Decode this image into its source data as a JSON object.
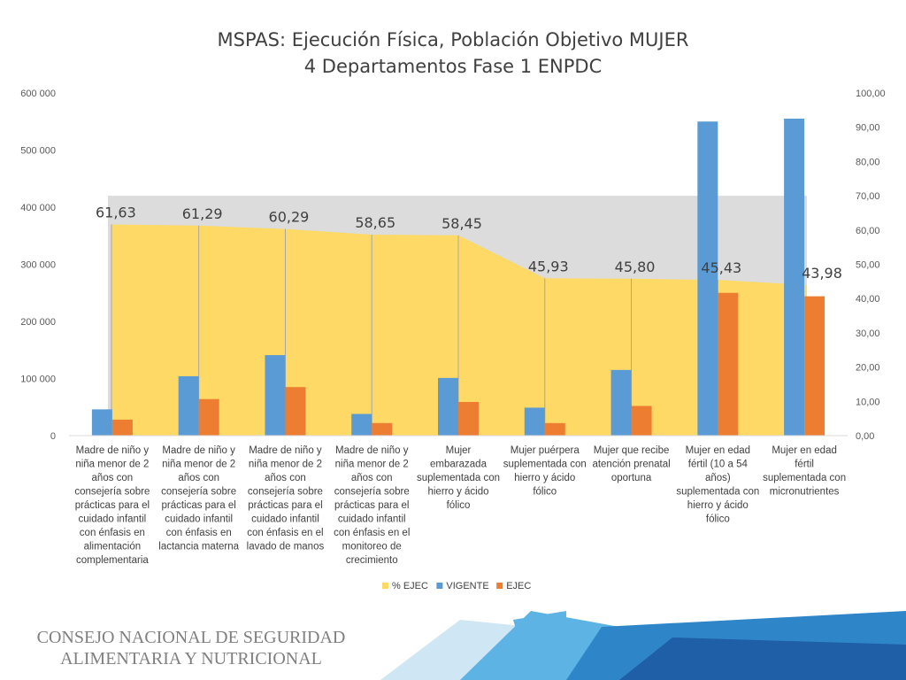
{
  "chart_data": {
    "type": "bar",
    "title": "MSPAS: Ejecución Física, Población Objetivo MUJER",
    "subtitle": "4 Departamentos Fase 1 ENPDC",
    "categories": [
      "Madre de niño y niña menor de 2 años con consejería sobre prácticas para el cuidado infantil con énfasis en alimentación complementaria",
      "Madre de niño y niña menor de 2 años con consejería sobre prácticas para el cuidado infantil con énfasis en lactancia materna",
      "Madre de niño y niña menor de 2 años con consejería sobre prácticas para el cuidado infantil con énfasis en el lavado de manos",
      "Madre de niño y niña menor de 2 años con consejería sobre prácticas para el cuidado infantil con énfasis en el monitoreo de crecimiento",
      "Mujer embarazada suplementada con hierro y ácido fólico",
      "Mujer puérpera suplementada con hierro y ácido fólico",
      "Mujer que recibe atención prenatal oportuna",
      "Mujer en edad fértil (10 a 54 años) suplementada con hierro y ácido fólico",
      "Mujer en edad fértil suplementada con micronutrientes"
    ],
    "category_lines": [
      [
        "Madre de niño y",
        "niña menor de 2",
        "años con",
        "consejería sobre",
        "prácticas para el",
        "cuidado infantil",
        "con énfasis en",
        "alimentación",
        "complementaria"
      ],
      [
        "Madre de niño y",
        "niña menor de 2",
        "años con",
        "consejería sobre",
        "prácticas para el",
        "cuidado infantil",
        "con énfasis en",
        "lactancia materna"
      ],
      [
        "Madre de niño y",
        "niña menor de 2",
        "años con",
        "consejería sobre",
        "prácticas para el",
        "cuidado infantil",
        "con énfasis en el",
        "lavado de manos"
      ],
      [
        "Madre de niño y",
        "niña menor de 2",
        "años con",
        "consejería sobre",
        "prácticas para el",
        "cuidado infantil",
        "con énfasis en el",
        "monitoreo de",
        "crecimiento"
      ],
      [
        "Mujer",
        "embarazada",
        "suplementada con",
        "hierro y ácido",
        "fólico"
      ],
      [
        "Mujer puérpera",
        "suplementada con",
        "hierro y ácido",
        "fólico"
      ],
      [
        "Mujer que recibe",
        "atención prenatal",
        "oportuna"
      ],
      [
        "Mujer en edad",
        "fértil (10 a 54",
        "años)",
        "suplementada con",
        "hierro y ácido",
        "fólico"
      ],
      [
        "Mujer en edad",
        "fértil",
        "suplementada con",
        "micronutrientes"
      ]
    ],
    "series": [
      {
        "name": "% EJEC",
        "kind": "area",
        "axis": "secondary",
        "color": "#FFD966",
        "values": [
          61.63,
          61.29,
          60.29,
          58.65,
          58.45,
          45.93,
          45.8,
          45.43,
          43.98
        ],
        "labels": [
          "61,63",
          "61,29",
          "60,29",
          "58,65",
          "58,45",
          "45,93",
          "45,80",
          "45,43",
          "43,98"
        ]
      },
      {
        "name": "VIGENTE",
        "kind": "bar",
        "axis": "primary",
        "color": "#5B9BD5",
        "values": [
          46000,
          104000,
          141000,
          38000,
          101000,
          49000,
          115000,
          550000,
          555000
        ]
      },
      {
        "name": "EJEC",
        "kind": "bar",
        "axis": "primary",
        "color": "#ED7D31",
        "values": [
          28000,
          64000,
          85000,
          22000,
          59000,
          22000,
          52000,
          250000,
          244000
        ]
      }
    ],
    "y_primary": {
      "min": 0,
      "max": 600000,
      "ticks": [
        "0",
        "100 000",
        "200 000",
        "300 000",
        "400 000",
        "500 000",
        "600 000"
      ]
    },
    "y_secondary": {
      "min": 0,
      "max": 100,
      "ticks": [
        "0,00",
        "10,00",
        "20,00",
        "30,00",
        "40,00",
        "50,00",
        "60,00",
        "70,00",
        "80,00",
        "90,00",
        "100,00"
      ]
    },
    "legend_position": "bottom",
    "grid": false,
    "background_band": "#DCDCDC"
  },
  "footer": {
    "org_line1": "CONSEJO NACIONAL DE SEGURIDAD",
    "org_line2": "ALIMENTARIA Y NUTRICIONAL"
  },
  "colors": {
    "ribbon_dark": "#1F5FA8",
    "ribbon_mid": "#2E86C8",
    "ribbon_light": "#5DB3E4",
    "ribbon_pale": "#CFE6F4"
  }
}
